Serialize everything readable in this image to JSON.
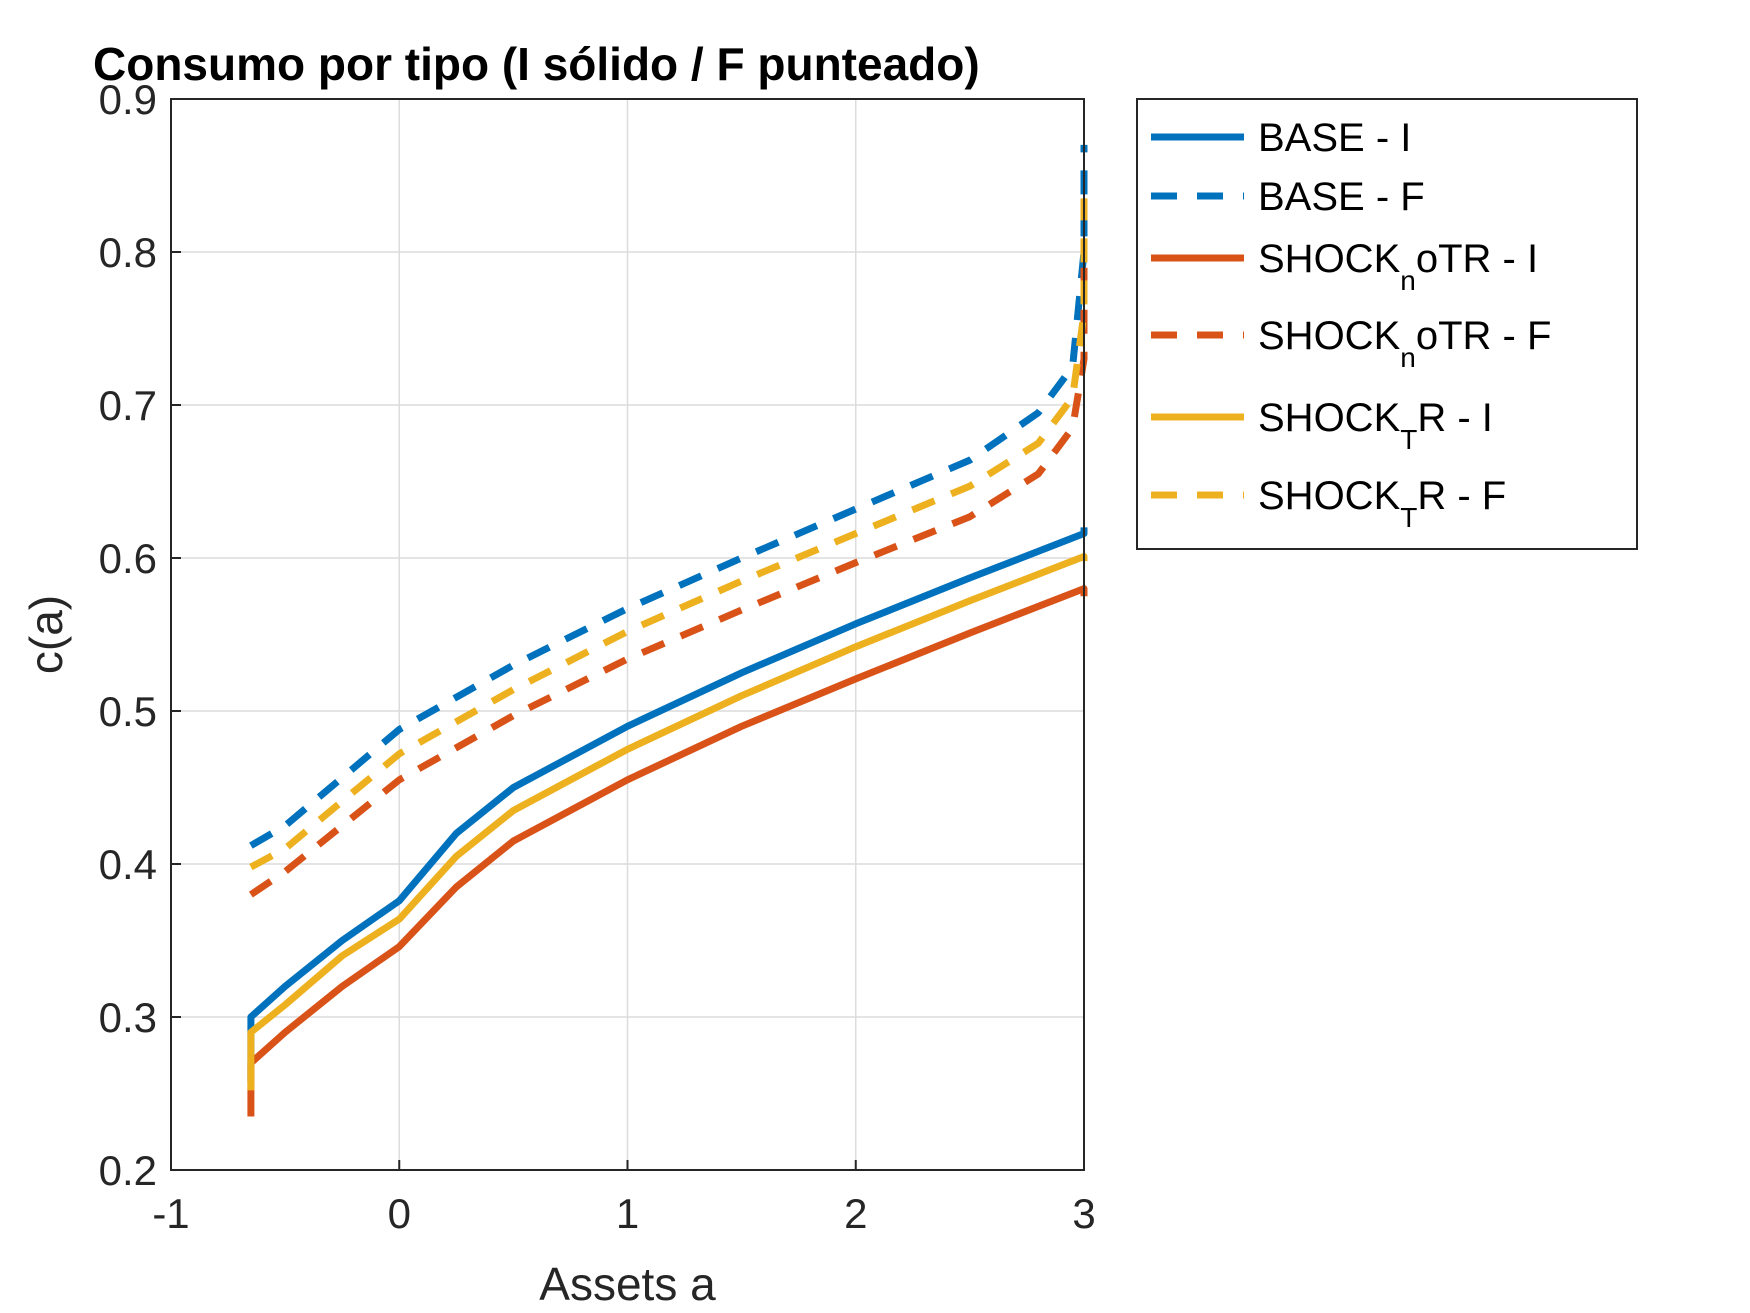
{
  "chart_data": {
    "type": "line",
    "title": "Consumo por tipo (I sólido / F punteado)",
    "xlabel": "Assets a",
    "ylabel": "c(a)",
    "xlim": [
      -1,
      3
    ],
    "ylim": [
      0.2,
      0.9
    ],
    "xticks": [
      "-1",
      "0",
      "1",
      "2",
      "3"
    ],
    "yticks": [
      "0.2",
      "0.3",
      "0.4",
      "0.5",
      "0.6",
      "0.7",
      "0.8",
      "0.9"
    ],
    "grid": true,
    "legend_position": "outside-right-top",
    "series": [
      {
        "name": "BASE - I",
        "legend_main": "BASE - I",
        "legend_sub": "",
        "legend_tail": "",
        "color": "#0072BD",
        "style": "solid",
        "x": [
          -0.65,
          -0.65,
          -0.5,
          -0.25,
          0,
          0.25,
          0.5,
          1,
          1.5,
          2,
          2.5,
          3,
          3
        ],
        "y": [
          0.258,
          0.3,
          0.32,
          0.35,
          0.376,
          0.42,
          0.45,
          0.49,
          0.525,
          0.557,
          0.587,
          0.616,
          0.62
        ]
      },
      {
        "name": "BASE - F",
        "legend_main": "BASE - F",
        "legend_sub": "",
        "legend_tail": "",
        "color": "#0072BD",
        "style": "dashed",
        "x": [
          -0.65,
          -0.5,
          0,
          0.5,
          1,
          1.5,
          2,
          2.5,
          2.8,
          2.95,
          3,
          3
        ],
        "y": [
          0.412,
          0.425,
          0.488,
          0.53,
          0.567,
          0.6,
          0.632,
          0.664,
          0.695,
          0.725,
          0.8,
          0.87
        ]
      },
      {
        "name": "SHOCK_noTR - I",
        "legend_main": "SHOCK",
        "legend_sub": "n",
        "legend_tail": "oTR - I",
        "color": "#D95319",
        "style": "solid",
        "x": [
          -0.65,
          -0.65,
          -0.5,
          -0.25,
          0,
          0.25,
          0.5,
          1,
          1.5,
          2,
          2.5,
          3,
          3
        ],
        "y": [
          0.235,
          0.27,
          0.29,
          0.32,
          0.346,
          0.385,
          0.415,
          0.455,
          0.49,
          0.521,
          0.551,
          0.58,
          0.575
        ]
      },
      {
        "name": "SHOCK_noTR - F",
        "legend_main": "SHOCK",
        "legend_sub": "n",
        "legend_tail": "oTR - F",
        "color": "#D95319",
        "style": "dashed",
        "x": [
          -0.65,
          -0.5,
          0,
          0.5,
          1,
          1.5,
          2,
          2.5,
          2.8,
          2.95,
          3,
          3
        ],
        "y": [
          0.38,
          0.395,
          0.455,
          0.497,
          0.534,
          0.566,
          0.597,
          0.627,
          0.655,
          0.685,
          0.73,
          0.8
        ]
      },
      {
        "name": "SHOCK_TR - I",
        "legend_main": "SHOCK",
        "legend_sub": "T",
        "legend_tail": "R - I",
        "color": "#EDB120",
        "style": "solid",
        "x": [
          -0.65,
          -0.65,
          -0.5,
          -0.25,
          0,
          0.25,
          0.5,
          1,
          1.5,
          2,
          2.5,
          3,
          3
        ],
        "y": [
          0.252,
          0.29,
          0.308,
          0.34,
          0.364,
          0.405,
          0.435,
          0.475,
          0.51,
          0.542,
          0.572,
          0.601,
          0.598
        ]
      },
      {
        "name": "SHOCK_TR - F",
        "legend_main": "SHOCK",
        "legend_sub": "T",
        "legend_tail": "R - F",
        "color": "#EDB120",
        "style": "dashed",
        "x": [
          -0.65,
          -0.5,
          0,
          0.5,
          1,
          1.5,
          2,
          2.5,
          2.8,
          2.95,
          3,
          3
        ],
        "y": [
          0.398,
          0.41,
          0.472,
          0.514,
          0.552,
          0.585,
          0.616,
          0.647,
          0.675,
          0.705,
          0.76,
          0.835
        ]
      }
    ]
  }
}
